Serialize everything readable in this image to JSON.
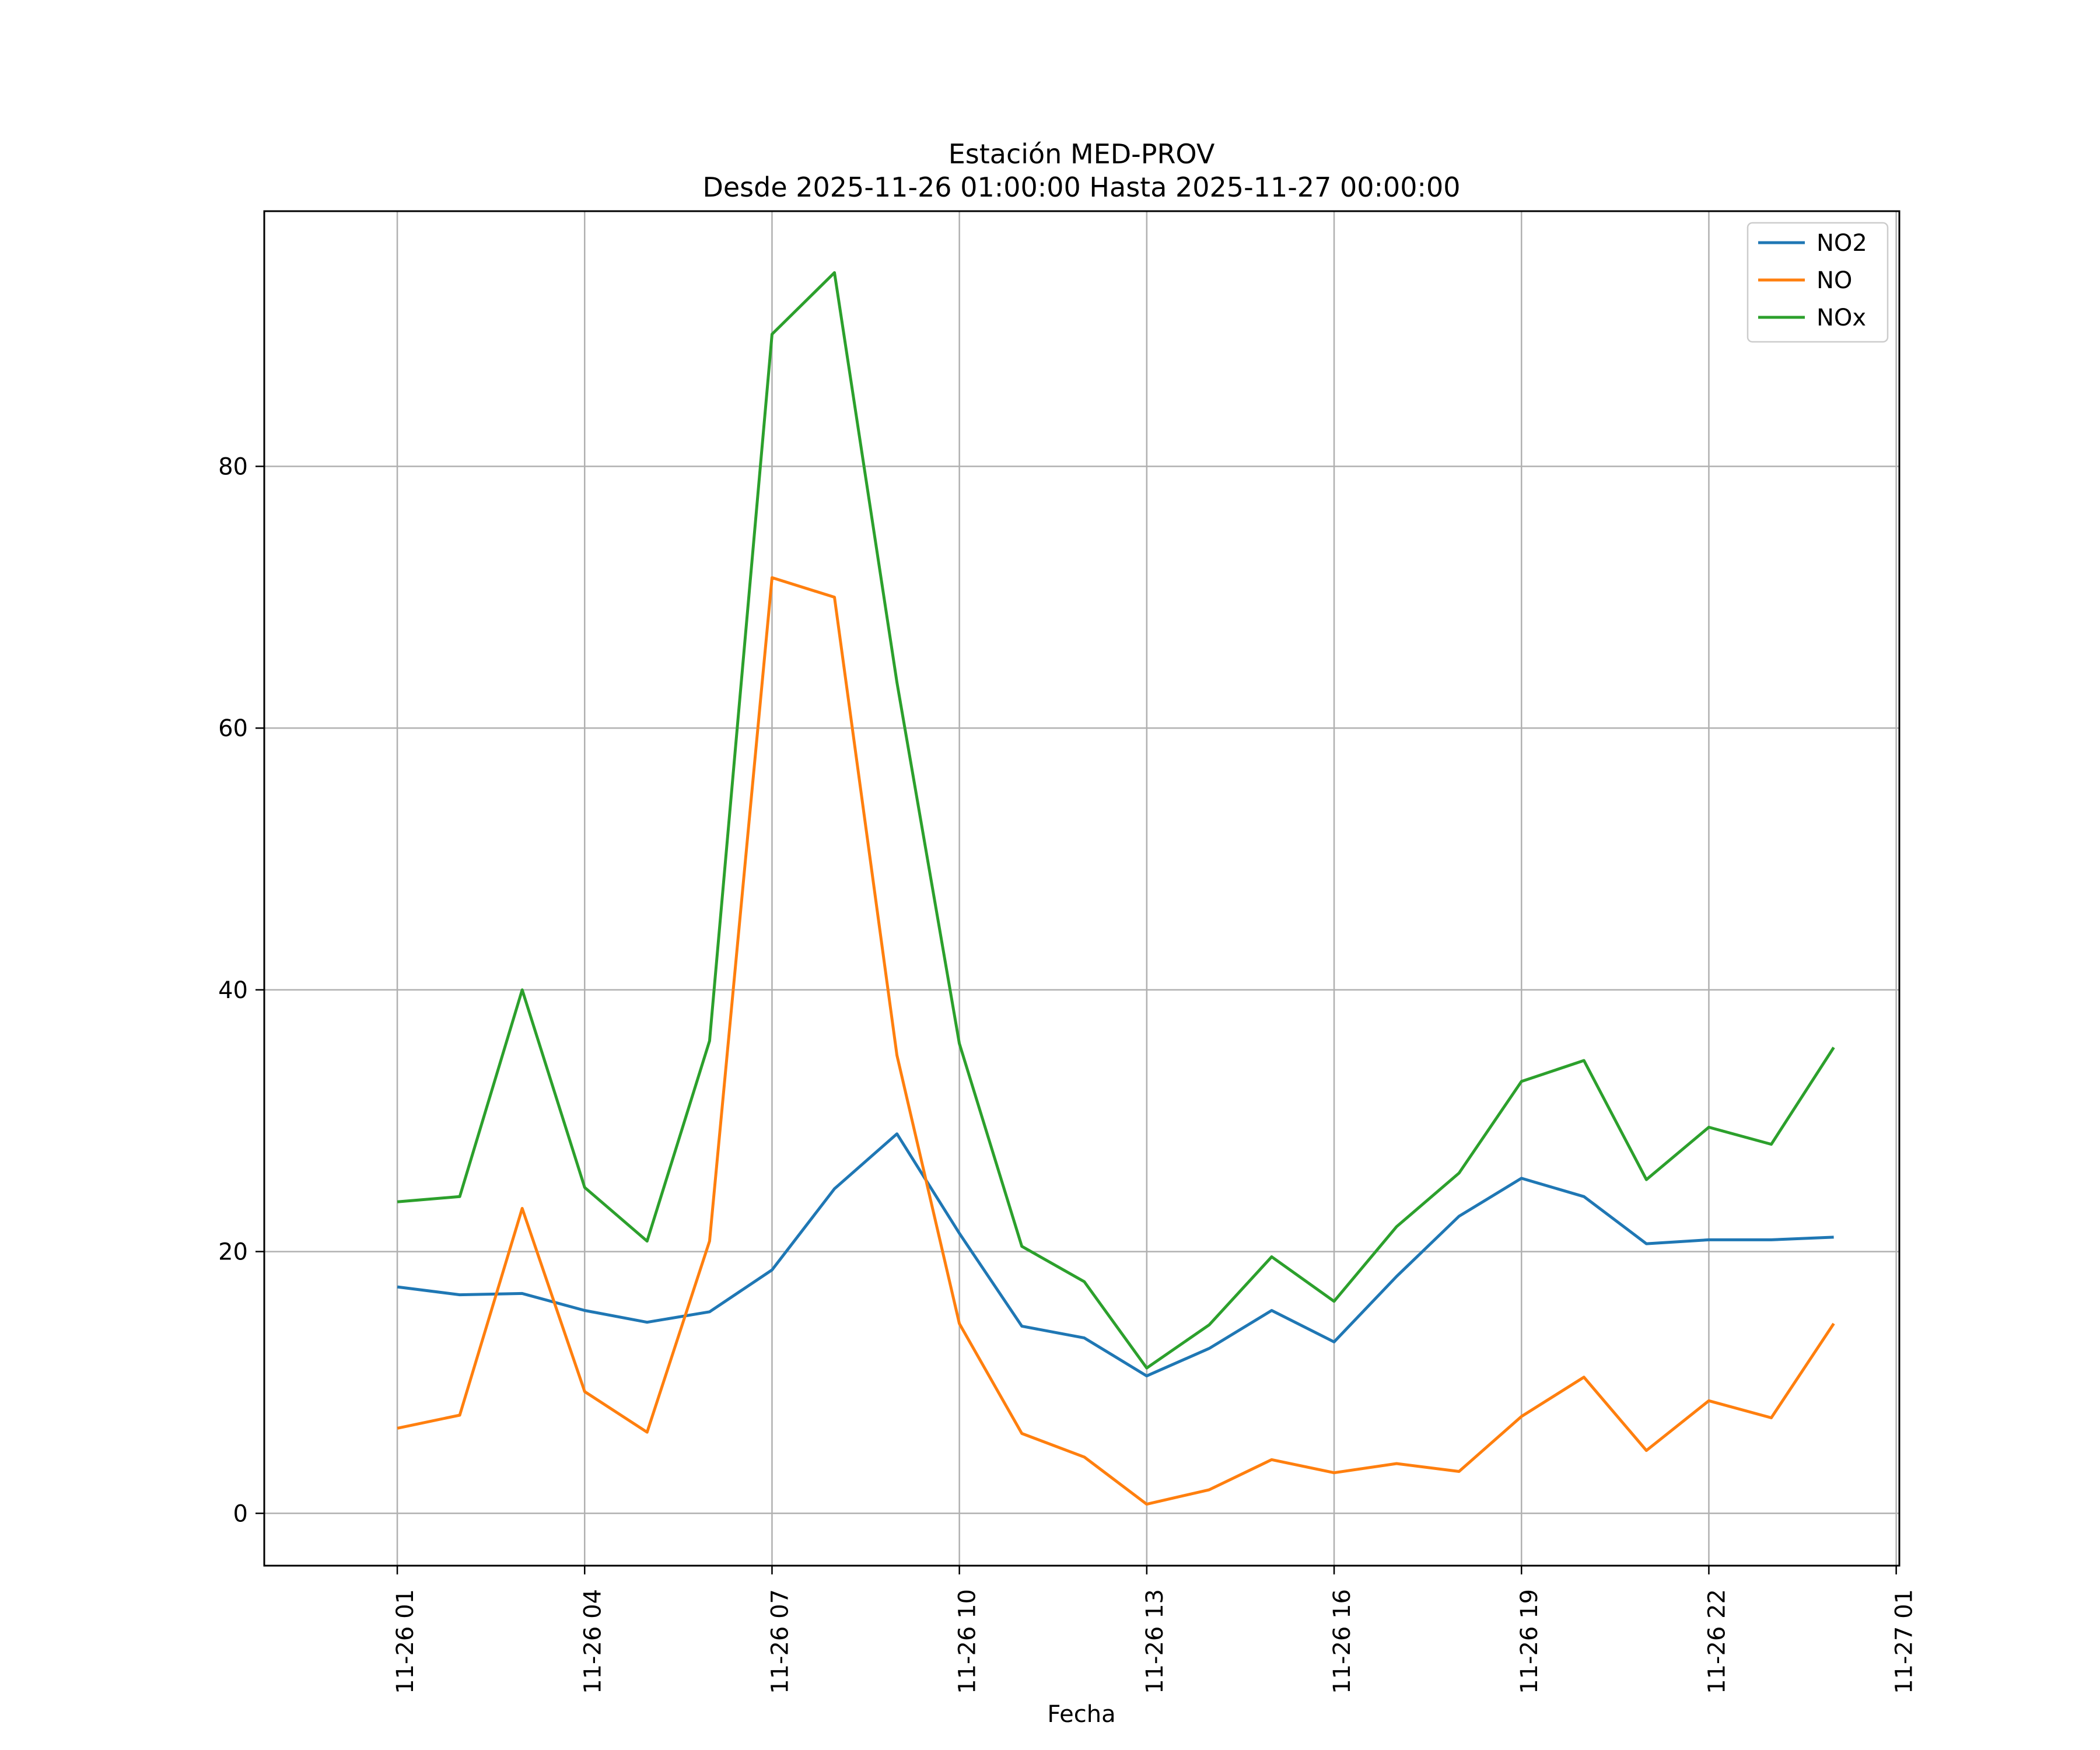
{
  "chart_data": {
    "type": "line",
    "title": "Estación MED-PROV",
    "subtitle": "Desde 2025-11-26 01:00:00 Hasta 2025-11-27 00:00:00",
    "xlabel": "Fecha",
    "ylabel": "",
    "x": [
      "2025-11-26 01:00",
      "2025-11-26 02:00",
      "2025-11-26 03:00",
      "2025-11-26 04:00",
      "2025-11-26 05:00",
      "2025-11-26 06:00",
      "2025-11-26 07:00",
      "2025-11-26 08:00",
      "2025-11-26 09:00",
      "2025-11-26 10:00",
      "2025-11-26 11:00",
      "2025-11-26 12:00",
      "2025-11-26 13:00",
      "2025-11-26 14:00",
      "2025-11-26 15:00",
      "2025-11-26 16:00",
      "2025-11-26 17:00",
      "2025-11-26 18:00",
      "2025-11-26 19:00",
      "2025-11-26 20:00",
      "2025-11-26 21:00",
      "2025-11-26 22:00",
      "2025-11-26 23:00",
      "2025-11-27 00:00"
    ],
    "xticks": [
      "11-26 01",
      "11-26 04",
      "11-26 07",
      "11-26 10",
      "11-26 13",
      "11-26 16",
      "11-26 19",
      "11-26 22",
      "11-27 01"
    ],
    "yticks": [
      0,
      20,
      40,
      60,
      80
    ],
    "ylim": [
      -4,
      99.5
    ],
    "grid": true,
    "legend_position": "top-right",
    "series": [
      {
        "name": "NO2",
        "color": "#1f77b4",
        "values": [
          17.3,
          16.7,
          16.8,
          15.5,
          14.6,
          15.4,
          18.6,
          24.8,
          29.0,
          21.4,
          14.3,
          13.4,
          10.5,
          12.6,
          15.5,
          13.1,
          18.1,
          22.7,
          25.6,
          24.2,
          20.6,
          20.9,
          20.9,
          21.1
        ]
      },
      {
        "name": "NO",
        "color": "#ff7f0e",
        "values": [
          6.5,
          7.5,
          23.3,
          9.3,
          6.2,
          20.8,
          71.5,
          70.0,
          35.0,
          14.5,
          6.1,
          4.3,
          0.7,
          1.8,
          4.1,
          3.1,
          3.8,
          3.2,
          7.4,
          10.4,
          4.8,
          8.6,
          7.3,
          14.5
        ]
      },
      {
        "name": "NOx",
        "color": "#2ca02c",
        "values": [
          23.8,
          24.2,
          40.0,
          24.9,
          20.8,
          36.1,
          90.1,
          94.8,
          63.5,
          35.9,
          20.4,
          17.7,
          11.1,
          14.4,
          19.6,
          16.2,
          21.9,
          26.0,
          33.0,
          34.6,
          25.5,
          29.5,
          28.2,
          35.6
        ]
      }
    ]
  }
}
